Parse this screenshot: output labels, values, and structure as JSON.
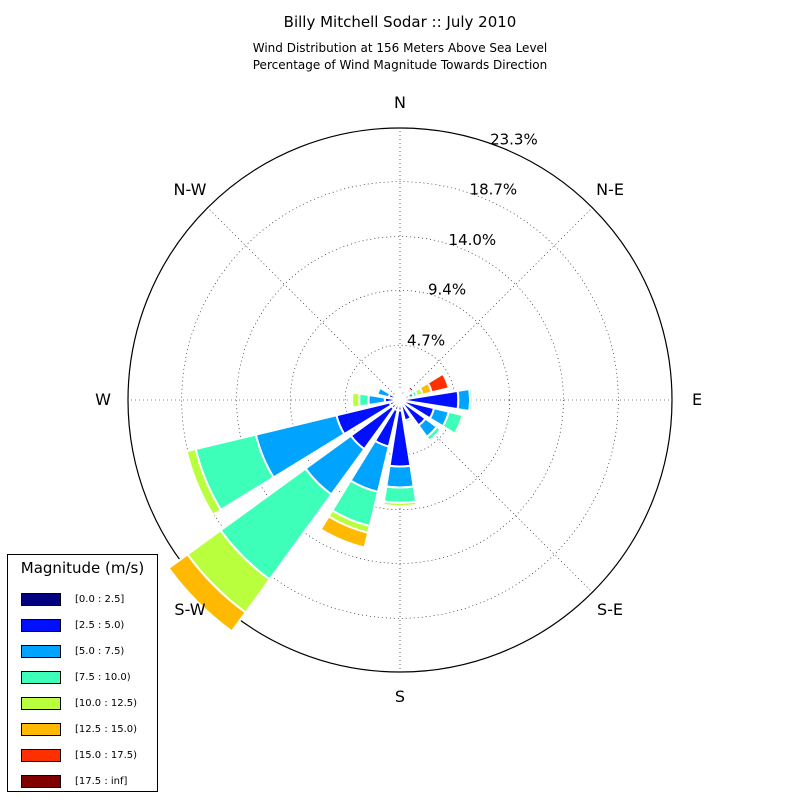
{
  "header": {
    "title": "Billy Mitchell Sodar :: July 2010",
    "subtitle_line1": "Wind Distribution at 156 Meters Above Sea Level",
    "subtitle_line2": "Percentage of Wind Magnitude Towards Direction"
  },
  "legend": {
    "title": "Magnitude (m/s)",
    "items": [
      {
        "label": "[0.0 : 2.5]",
        "color": "#000080"
      },
      {
        "label": "[2.5 : 5.0)",
        "color": "#0010ff"
      },
      {
        "label": "[5.0 : 7.5)",
        "color": "#00a4ff"
      },
      {
        "label": "[7.5 : 10.0)",
        "color": "#3dffb9"
      },
      {
        "label": "[10.0 : 12.5)",
        "color": "#b9ff3d"
      },
      {
        "label": "[12.5 : 15.0)",
        "color": "#ffb900"
      },
      {
        "label": "[15.0 : 17.5)",
        "color": "#ff3000"
      },
      {
        "label": "[17.5 : inf]",
        "color": "#800000"
      }
    ]
  },
  "chart_data": {
    "type": "windrose",
    "title": "Billy Mitchell Sodar :: July 2010",
    "radial_max": 23.3,
    "radial_ticks": [
      4.7,
      9.4,
      14.0,
      18.7,
      23.3
    ],
    "radial_tick_labels": [
      "4.7%",
      "9.4%",
      "14.0%",
      "18.7%",
      "23.3%"
    ],
    "direction_labels": [
      {
        "label": "N",
        "angle": 0
      },
      {
        "label": "N-E",
        "angle": 45
      },
      {
        "label": "E",
        "angle": 90
      },
      {
        "label": "S-E",
        "angle": 135
      },
      {
        "label": "S",
        "angle": 180
      },
      {
        "label": "S-W",
        "angle": 225
      },
      {
        "label": "W",
        "angle": 270
      },
      {
        "label": "N-W",
        "angle": 315
      }
    ],
    "bin_count": 16,
    "bin_width_deg": 22.5,
    "series_names": [
      "[0.0 : 2.5]",
      "[2.5 : 5.0)",
      "[5.0 : 7.5)",
      "[7.5 : 10.0)",
      "[10.0 : 12.5)",
      "[12.5 : 15.0)",
      "[15.0 : 17.5)",
      "[17.5 : inf]"
    ],
    "bins": [
      {
        "direction": 0,
        "cumulative": [
          0.3,
          0.6,
          0.7,
          0.7,
          0.7,
          0.7,
          0.7,
          0.7
        ]
      },
      {
        "direction": 22.5,
        "cumulative": [
          0.3,
          0.8,
          0.9,
          0.9,
          0.9,
          0.9,
          0.9,
          0.9
        ]
      },
      {
        "direction": 45,
        "cumulative": [
          0.3,
          0.5,
          0.7,
          0.8,
          0.9,
          1.0,
          1.2,
          1.45
        ]
      },
      {
        "direction": 67.5,
        "cumulative": [
          0.3,
          0.8,
          1.2,
          1.5,
          2.0,
          2.8,
          4.3,
          4.3
        ]
      },
      {
        "direction": 90,
        "cumulative": [
          0.5,
          5.0,
          6.0,
          6.2,
          6.2,
          6.2,
          6.2,
          6.2
        ]
      },
      {
        "direction": 112.5,
        "cumulative": [
          0.4,
          3.0,
          4.3,
          5.5,
          5.7,
          5.7,
          5.7,
          5.7
        ]
      },
      {
        "direction": 135,
        "cumulative": [
          0.4,
          2.7,
          3.9,
          4.3,
          4.3,
          4.3,
          4.3,
          4.3
        ]
      },
      {
        "direction": 157.5,
        "cumulative": [
          0.4,
          1.8,
          2.0,
          2.0,
          2.0,
          2.0,
          2.0,
          2.0
        ]
      },
      {
        "direction": 180,
        "cumulative": [
          0.9,
          5.7,
          7.5,
          8.8,
          9.1,
          9.1,
          9.1,
          9.1
        ]
      },
      {
        "direction": 202.5,
        "cumulative": [
          0.9,
          4.1,
          8.1,
          11.1,
          11.7,
          13.0,
          13.0,
          13.0
        ]
      },
      {
        "direction": 225,
        "cumulative": [
          0.9,
          5.2,
          10.0,
          19.0,
          22.5,
          24.5,
          24.5,
          24.5
        ]
      },
      {
        "direction": 247.5,
        "cumulative": [
          0.9,
          5.6,
          12.7,
          18.0,
          18.8,
          18.8,
          18.8,
          18.8
        ]
      },
      {
        "direction": 270,
        "cumulative": [
          0.5,
          1.3,
          2.7,
          3.5,
          4.1,
          4.1,
          4.1,
          4.1
        ]
      },
      {
        "direction": 292.5,
        "cumulative": [
          0.3,
          1.0,
          2.0,
          2.0,
          2.0,
          2.0,
          2.0,
          2.0
        ]
      },
      {
        "direction": 315,
        "cumulative": [
          0.2,
          0.5,
          0.6,
          0.6,
          0.6,
          0.6,
          0.6,
          0.6
        ]
      },
      {
        "direction": 337.5,
        "cumulative": [
          0.2,
          0.5,
          0.6,
          0.6,
          0.6,
          0.6,
          0.6,
          0.6
        ]
      }
    ],
    "grid": true,
    "legend_position": "bottom-left"
  }
}
